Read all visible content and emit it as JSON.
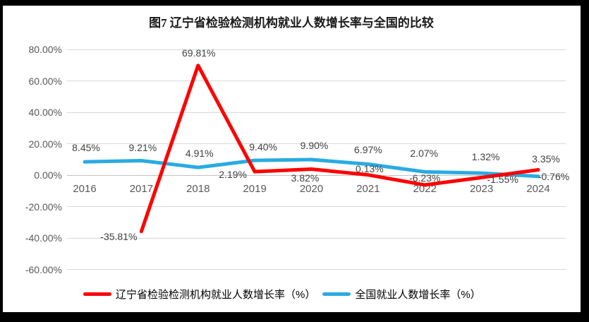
{
  "title": "图7 辽宁省检验检测机构就业人数增长率与全国的比较",
  "chart_data": {
    "type": "line",
    "categories": [
      "2016",
      "2017",
      "2018",
      "2019",
      "2020",
      "2021",
      "2022",
      "2023",
      "2024"
    ],
    "series": [
      {
        "name": "辽宁省检验检测机构就业人数增长率（%）",
        "color": "#FF0000",
        "values": [
          null,
          -35.81,
          69.81,
          2.19,
          3.82,
          0.13,
          -6.23,
          -1.55,
          3.35
        ],
        "labels": [
          "",
          "-35.81%",
          "69.81%",
          "2.19%",
          "3.82%",
          "0.13%",
          "-6.23%",
          "-1.55%",
          "3.35%"
        ]
      },
      {
        "name": "全国就业人数增长率（%）",
        "color": "#29ABE2",
        "values": [
          8.45,
          9.21,
          4.91,
          9.4,
          9.9,
          6.97,
          2.07,
          1.32,
          -0.76
        ],
        "labels": [
          "8.45%",
          "9.21%",
          "4.91%",
          "9.40%",
          "9.90%",
          "6.97%",
          "2.07%",
          "1.32%",
          "-0.76%"
        ]
      }
    ],
    "yticks": [
      "80.00%",
      "60.00%",
      "40.00%",
      "20.00%",
      "0.00%",
      "-20.00%",
      "-40.00%",
      "-60.00%"
    ],
    "ylim": [
      -60,
      80
    ],
    "ytick_step": 20,
    "grid": true,
    "legend_position": "bottom"
  }
}
